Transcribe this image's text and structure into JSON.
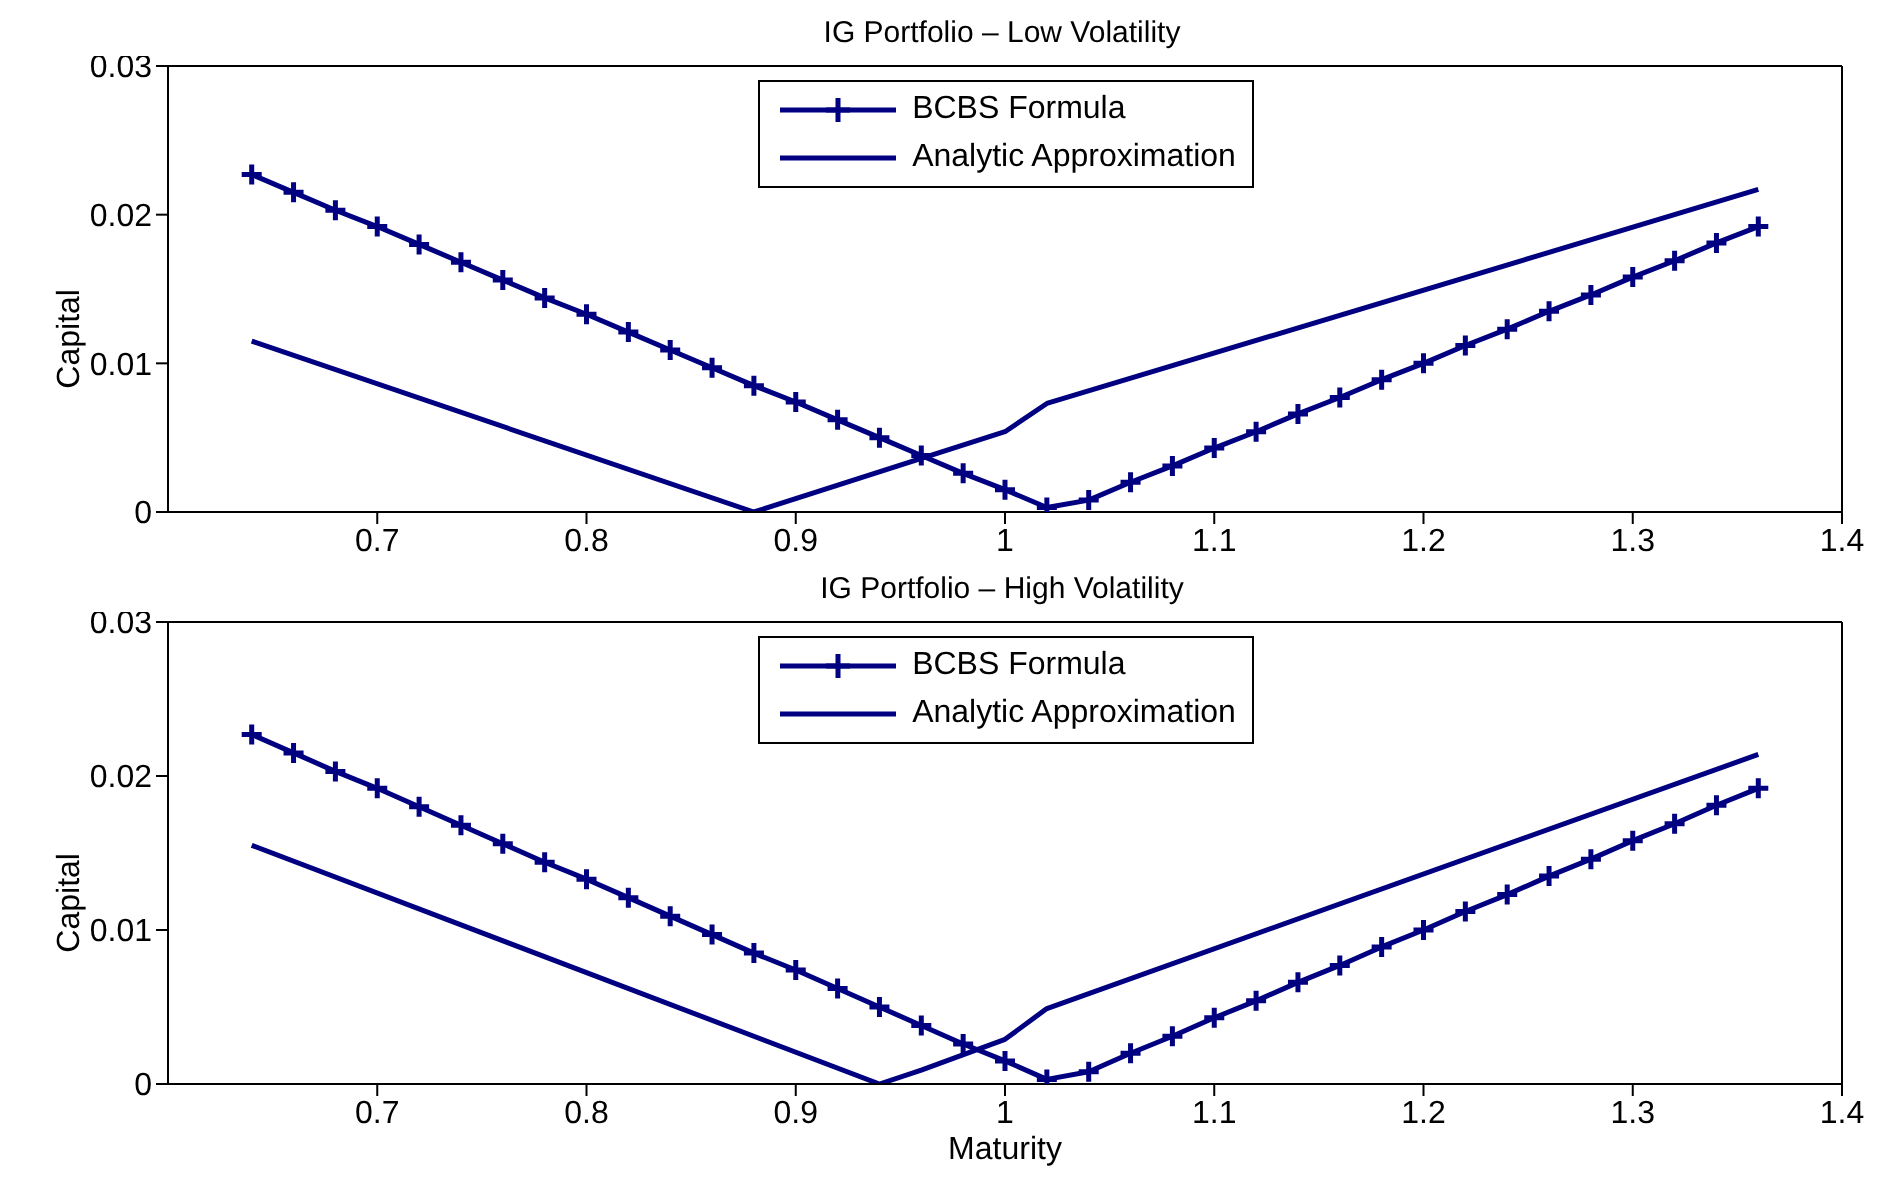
{
  "chart_data": [
    {
      "type": "line",
      "title": "IG Portfolio – Low Volatility",
      "ylabel": "Capital",
      "xlim": [
        0.6,
        1.4
      ],
      "xticks": [
        0.7,
        0.8,
        0.9,
        1,
        1.1,
        1.2,
        1.3,
        1.4
      ],
      "ylim": [
        0,
        0.03
      ],
      "yticks": [
        0,
        0.01,
        0.02,
        0.03
      ],
      "legend": "top",
      "series": [
        {
          "name": "BCBS Formula",
          "color": "#000080",
          "marker": "cross",
          "x": [
            0.64,
            0.66,
            0.68,
            0.7,
            0.72,
            0.74,
            0.76,
            0.78,
            0.8,
            0.82,
            0.84,
            0.86,
            0.88,
            0.9,
            0.92,
            0.94,
            0.96,
            0.98,
            1,
            1.02,
            1.04,
            1.06,
            1.08,
            1.1,
            1.12,
            1.14,
            1.16,
            1.18,
            1.2,
            1.22,
            1.24,
            1.26,
            1.28,
            1.3,
            1.32,
            1.34,
            1.36
          ],
          "values": [
            0.0227,
            0.0215,
            0.0203,
            0.0192,
            0.018,
            0.0168,
            0.0156,
            0.0144,
            0.0133,
            0.0121,
            0.0109,
            0.0097,
            0.0085,
            0.0074,
            0.0062,
            0.005,
            0.0038,
            0.0026,
            0.0015,
            0.0003,
            0.0008,
            0.002,
            0.0031,
            0.0043,
            0.0054,
            0.0066,
            0.0077,
            0.0089,
            0.01,
            0.0112,
            0.0123,
            0.0135,
            0.0146,
            0.0158,
            0.0169,
            0.0181,
            0.0192
          ]
        },
        {
          "name": "Analytic Approximation",
          "color": "#000080",
          "marker": "none",
          "x": [
            0.64,
            0.88,
            1,
            1.02,
            1.36
          ],
          "values": [
            0.0115,
            0,
            0.0054,
            0.0073,
            0.0217
          ]
        }
      ]
    },
    {
      "type": "line",
      "title": "IG Portfolio – High Volatility",
      "xlabel": "Maturity",
      "ylabel": "Capital",
      "xlim": [
        0.6,
        1.4
      ],
      "xticks": [
        0.7,
        0.8,
        0.9,
        1,
        1.1,
        1.2,
        1.3,
        1.4
      ],
      "ylim": [
        0,
        0.03
      ],
      "yticks": [
        0,
        0.01,
        0.02,
        0.03
      ],
      "legend": "top",
      "series": [
        {
          "name": "BCBS Formula",
          "color": "#000080",
          "marker": "cross",
          "x": [
            0.64,
            0.66,
            0.68,
            0.7,
            0.72,
            0.74,
            0.76,
            0.78,
            0.8,
            0.82,
            0.84,
            0.86,
            0.88,
            0.9,
            0.92,
            0.94,
            0.96,
            0.98,
            1,
            1.02,
            1.04,
            1.06,
            1.08,
            1.1,
            1.12,
            1.14,
            1.16,
            1.18,
            1.2,
            1.22,
            1.24,
            1.26,
            1.28,
            1.3,
            1.32,
            1.34,
            1.36
          ],
          "values": [
            0.0227,
            0.0215,
            0.0203,
            0.0192,
            0.018,
            0.0168,
            0.0156,
            0.0144,
            0.0133,
            0.0121,
            0.0109,
            0.0097,
            0.0085,
            0.0074,
            0.0062,
            0.005,
            0.0038,
            0.0026,
            0.0015,
            0.0003,
            0.0008,
            0.002,
            0.0031,
            0.0043,
            0.0054,
            0.0066,
            0.0077,
            0.0089,
            0.01,
            0.0112,
            0.0123,
            0.0135,
            0.0146,
            0.0158,
            0.0169,
            0.0181,
            0.0192
          ]
        },
        {
          "name": "Analytic Approximation",
          "color": "#000080",
          "marker": "none",
          "x": [
            0.64,
            0.94,
            0.96,
            1,
            1.02,
            1.36
          ],
          "values": [
            0.0155,
            0,
            0.0009,
            0.0029,
            0.0049,
            0.0214
          ]
        }
      ]
    }
  ]
}
